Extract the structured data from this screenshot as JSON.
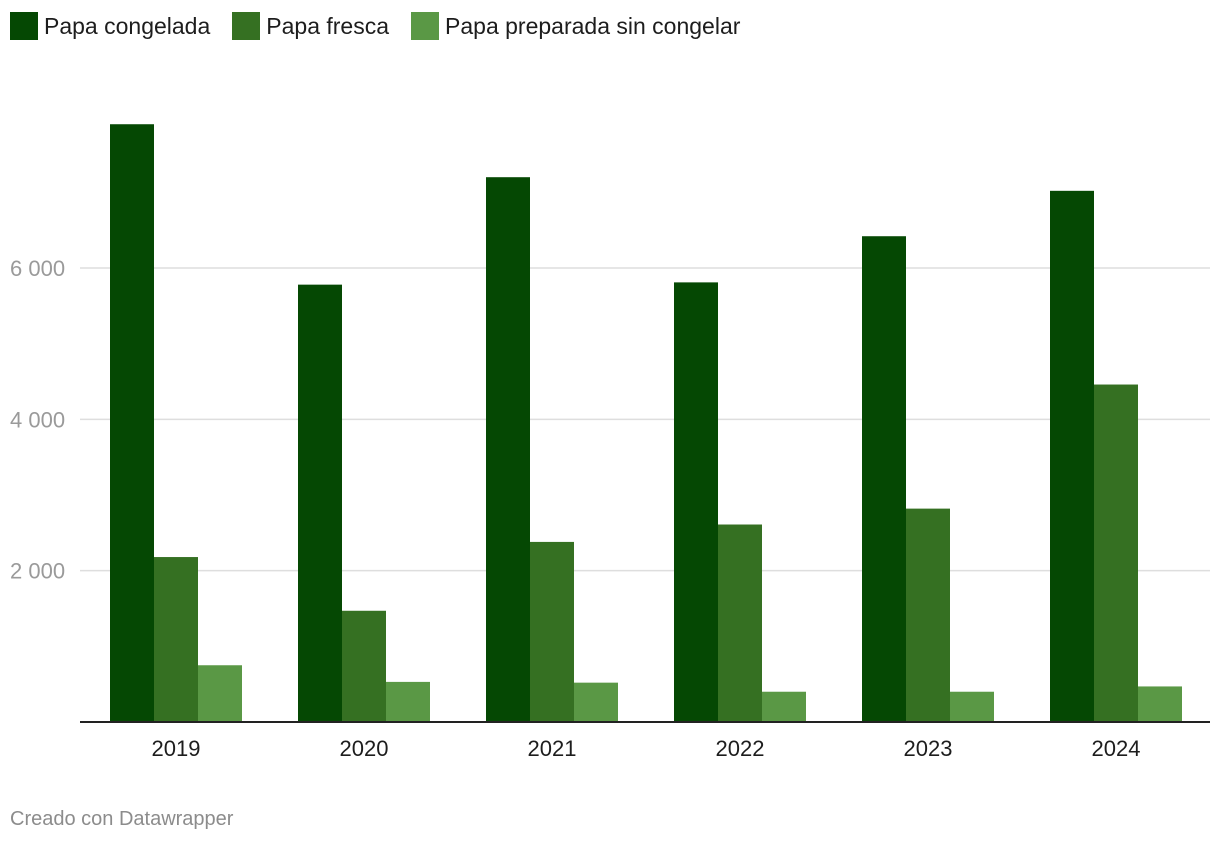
{
  "legend": [
    {
      "label": "Papa congelada",
      "color": "#054803"
    },
    {
      "label": "Papa fresca",
      "color": "#357022"
    },
    {
      "label": "Papa preparada sin congelar",
      "color": "#5a9845"
    }
  ],
  "chart_data": {
    "type": "bar",
    "categories": [
      "2019",
      "2020",
      "2021",
      "2022",
      "2023",
      "2024"
    ],
    "series": [
      {
        "name": "Papa congelada",
        "values": [
          7900,
          5780,
          7200,
          5810,
          6420,
          7020
        ],
        "color": "#054803"
      },
      {
        "name": "Papa fresca",
        "values": [
          2180,
          1470,
          2380,
          2610,
          2820,
          4460
        ],
        "color": "#357022"
      },
      {
        "name": "Papa preparada sin congelar",
        "values": [
          750,
          530,
          520,
          400,
          400,
          470
        ],
        "color": "#5a9845"
      }
    ],
    "yticks": [
      {
        "value": 2000,
        "label": "2 000"
      },
      {
        "value": 4000,
        "label": "4 000"
      },
      {
        "value": 6000,
        "label": "6 000"
      }
    ],
    "ylim": [
      0,
      8000
    ],
    "grid": true,
    "legend_position": "top-left",
    "title": "",
    "xlabel": "",
    "ylabel": ""
  },
  "footer": {
    "credit": "Creado con Datawrapper"
  }
}
